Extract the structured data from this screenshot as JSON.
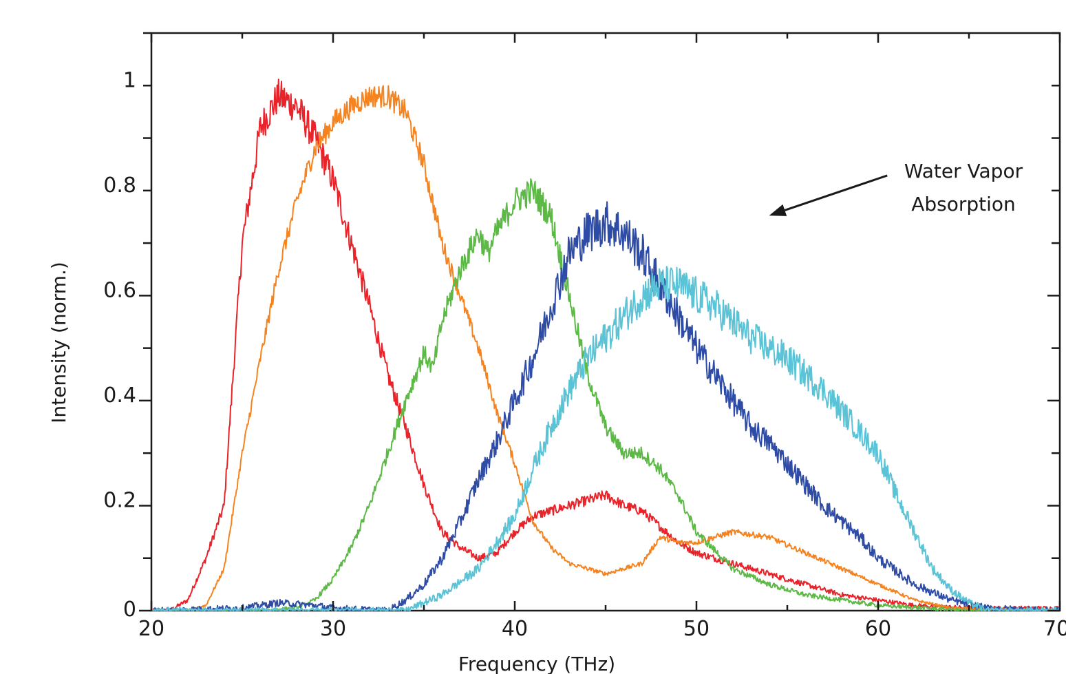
{
  "chart_data": {
    "type": "line",
    "title": "",
    "xlabel": "Frequency (THz)",
    "ylabel": "Intensity (norm.)",
    "xlim": [
      20,
      70
    ],
    "ylim": [
      0,
      1.1
    ],
    "x_ticks": [
      20,
      30,
      40,
      50,
      60,
      70
    ],
    "x_tick_labels": [
      "20",
      "30",
      "40",
      "50",
      "60",
      "70"
    ],
    "y_ticks": [
      0,
      0.2,
      0.4,
      0.6,
      0.8,
      1
    ],
    "y_tick_labels": [
      "0",
      "0.2",
      "0.4",
      "0.6",
      "0.8",
      "1"
    ],
    "grid": false,
    "legend": "none",
    "annotation": {
      "lines": [
        "Water Vapor",
        "Absorption"
      ],
      "arrow_from": [
        60.5,
        0.75
      ],
      "arrow_to": [
        54,
        0.7
      ]
    },
    "series": [
      {
        "color": "#e8232a",
        "noise": 0.012,
        "x": [
          20,
          21,
          22,
          23,
          24,
          25,
          26,
          27,
          28,
          29,
          30,
          31,
          32,
          33,
          34,
          35,
          36,
          37,
          38,
          39,
          40,
          41,
          42,
          43,
          44,
          45,
          46,
          47,
          48,
          49,
          50,
          52,
          54,
          56,
          58,
          60,
          62,
          65,
          70
        ],
        "values": [
          0.0,
          0.0,
          0.02,
          0.1,
          0.2,
          0.7,
          0.92,
          0.98,
          0.96,
          0.9,
          0.82,
          0.7,
          0.58,
          0.45,
          0.35,
          0.24,
          0.15,
          0.12,
          0.1,
          0.11,
          0.15,
          0.18,
          0.19,
          0.2,
          0.21,
          0.22,
          0.2,
          0.19,
          0.16,
          0.13,
          0.11,
          0.09,
          0.07,
          0.05,
          0.03,
          0.02,
          0.01,
          0.005,
          0.005
        ]
      },
      {
        "color": "#f5831f",
        "noise": 0.008,
        "x": [
          20,
          22,
          23,
          24,
          25,
          26,
          27,
          28,
          29,
          30,
          31,
          32,
          33,
          34,
          35,
          36,
          37,
          38,
          39,
          40,
          41,
          42,
          43,
          45,
          47,
          48,
          49,
          50,
          52,
          54,
          56,
          58,
          60,
          62,
          64,
          70
        ],
        "values": [
          0.0,
          0.0,
          0.01,
          0.08,
          0.3,
          0.48,
          0.65,
          0.78,
          0.88,
          0.93,
          0.96,
          0.98,
          0.98,
          0.95,
          0.85,
          0.7,
          0.6,
          0.5,
          0.38,
          0.28,
          0.17,
          0.12,
          0.09,
          0.07,
          0.09,
          0.14,
          0.13,
          0.13,
          0.15,
          0.14,
          0.11,
          0.08,
          0.05,
          0.02,
          0.005,
          0.0
        ]
      },
      {
        "color": "#5cb946",
        "noise": 0.012,
        "x": [
          20,
          26,
          28,
          29,
          30,
          31,
          32,
          33,
          34,
          35,
          35.5,
          36,
          37,
          38,
          38.5,
          39,
          40,
          41,
          42,
          43,
          44,
          45,
          46,
          47,
          48,
          49,
          50,
          52,
          54,
          56,
          58,
          60,
          65,
          70
        ],
        "values": [
          0.0,
          0.0,
          0.005,
          0.02,
          0.06,
          0.12,
          0.2,
          0.3,
          0.4,
          0.49,
          0.46,
          0.55,
          0.65,
          0.72,
          0.68,
          0.72,
          0.78,
          0.8,
          0.75,
          0.6,
          0.45,
          0.35,
          0.3,
          0.3,
          0.27,
          0.22,
          0.15,
          0.08,
          0.05,
          0.03,
          0.02,
          0.01,
          0.0,
          0.0
        ]
      },
      {
        "color": "#2e4ca6",
        "noise": 0.02,
        "x": [
          20,
          25,
          27,
          29,
          30,
          33,
          34,
          35,
          36,
          37,
          38,
          39,
          40,
          41,
          42,
          43,
          44,
          45,
          46,
          47,
          48,
          49,
          50,
          51,
          52,
          53,
          54,
          55,
          56,
          57,
          58,
          59,
          60,
          62,
          64,
          66,
          70
        ],
        "values": [
          0.0,
          0.005,
          0.015,
          0.01,
          0.005,
          0.0,
          0.02,
          0.05,
          0.1,
          0.17,
          0.25,
          0.32,
          0.4,
          0.48,
          0.58,
          0.68,
          0.72,
          0.74,
          0.72,
          0.68,
          0.62,
          0.56,
          0.5,
          0.45,
          0.4,
          0.35,
          0.32,
          0.28,
          0.24,
          0.2,
          0.17,
          0.14,
          0.1,
          0.05,
          0.02,
          0.005,
          0.0
        ]
      },
      {
        "color": "#5ac3d6",
        "noise": 0.02,
        "x": [
          20,
          34,
          36,
          38,
          40,
          41,
          42,
          43,
          44,
          45,
          46,
          47,
          48,
          49,
          50,
          51,
          52,
          53,
          54,
          55,
          56,
          57,
          58,
          59,
          60,
          61,
          62,
          63,
          64,
          65,
          66,
          70
        ],
        "values": [
          0.0,
          0.0,
          0.03,
          0.08,
          0.18,
          0.27,
          0.35,
          0.42,
          0.48,
          0.52,
          0.56,
          0.6,
          0.62,
          0.62,
          0.6,
          0.58,
          0.55,
          0.52,
          0.5,
          0.48,
          0.45,
          0.42,
          0.38,
          0.34,
          0.3,
          0.22,
          0.15,
          0.08,
          0.04,
          0.015,
          0.0,
          0.0
        ]
      }
    ]
  }
}
